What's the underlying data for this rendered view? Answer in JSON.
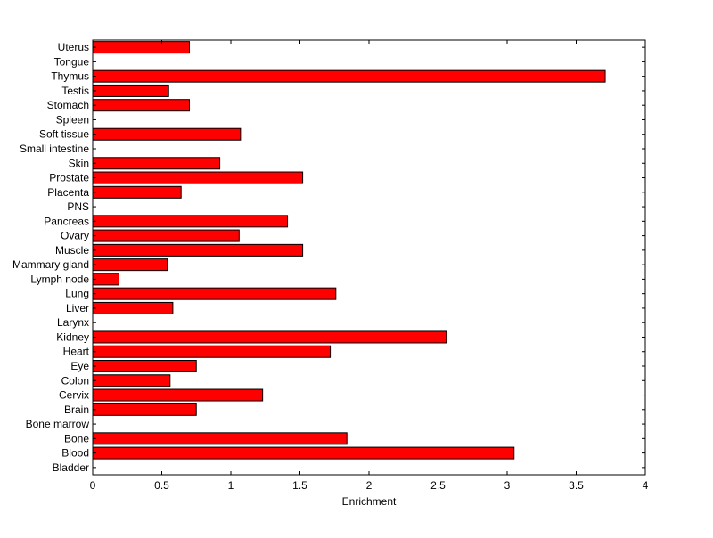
{
  "chart_data": {
    "type": "bar",
    "orientation": "horizontal",
    "xlabel": "Enrichment",
    "xlim": [
      0,
      4
    ],
    "xticks": [
      0,
      0.5,
      1,
      1.5,
      2,
      2.5,
      3,
      3.5,
      4
    ],
    "xtick_labels": [
      "0",
      "0.5",
      "1",
      "1.5",
      "2",
      "2.5",
      "3",
      "3.5",
      "4"
    ],
    "grid": false,
    "bar_color": "#ff0000",
    "bar_edge_color": "#000000",
    "categories": [
      "Bladder",
      "Blood",
      "Bone",
      "Bone marrow",
      "Brain",
      "Cervix",
      "Colon",
      "Eye",
      "Heart",
      "Kidney",
      "Larynx",
      "Liver",
      "Lung",
      "Lymph node",
      "Mammary gland",
      "Muscle",
      "Ovary",
      "Pancreas",
      "PNS",
      "Placenta",
      "Prostate",
      "Skin",
      "Small intestine",
      "Soft tissue",
      "Spleen",
      "Stomach",
      "Testis",
      "Thymus",
      "Tongue",
      "Uterus"
    ],
    "values": [
      0,
      3.05,
      1.84,
      0,
      0.75,
      1.23,
      0.56,
      0.75,
      1.72,
      2.56,
      0,
      0.58,
      1.76,
      0.19,
      0.54,
      1.52,
      1.06,
      1.41,
      0,
      0.64,
      1.52,
      0.92,
      0,
      1.07,
      0,
      0.7,
      0.55,
      3.71,
      0,
      0.7
    ]
  }
}
